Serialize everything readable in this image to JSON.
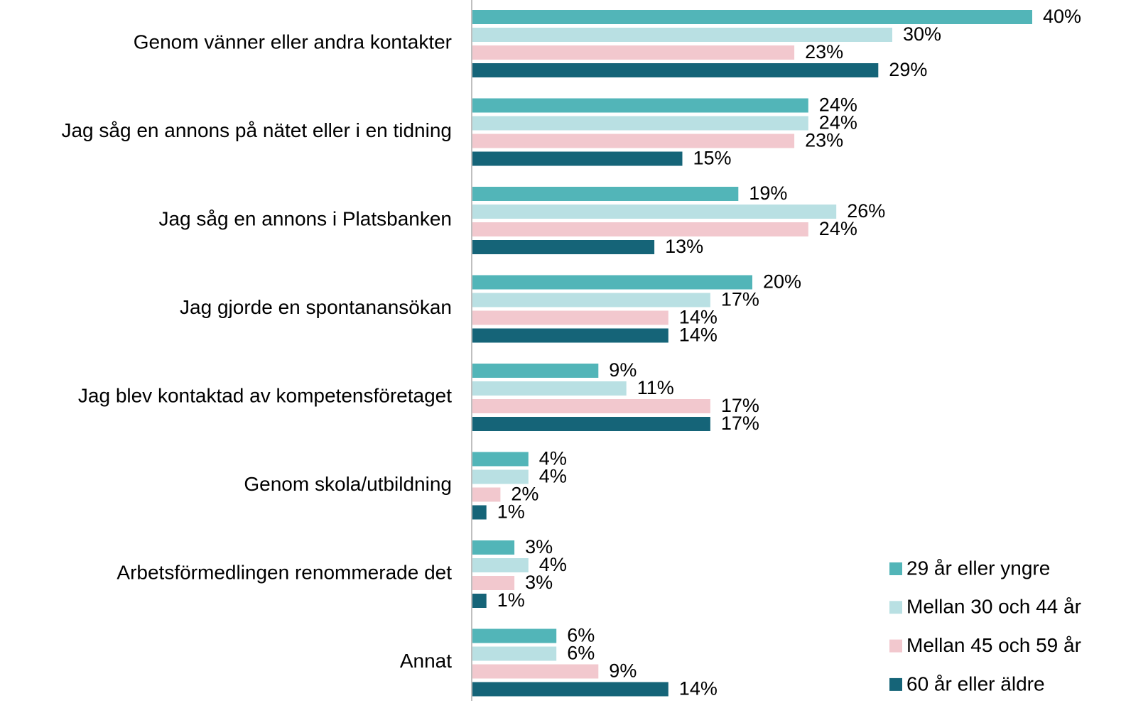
{
  "chart_data": {
    "type": "bar",
    "orientation": "horizontal",
    "categories": [
      "Genom vänner eller andra kontakter",
      "Jag såg en annons på nätet eller i en tidning",
      "Jag såg en annons i Platsbanken",
      "Jag gjorde en spontanansökan",
      "Jag blev kontaktad av kompetensföretaget",
      "Genom skola/utbildning",
      "Arbetsförmedlingen renommerade det",
      "Annat"
    ],
    "series": [
      {
        "name": "29 år eller yngre",
        "color": "#52b5b8",
        "values": [
          40,
          24,
          19,
          20,
          9,
          4,
          3,
          6
        ],
        "value_labels": [
          "40%",
          "24%",
          "19%",
          "20%",
          "9%",
          "4%",
          "3%",
          "6%"
        ]
      },
      {
        "name": "Mellan 30 och 44 år",
        "color": "#b9e0e3",
        "values": [
          30,
          24,
          26,
          17,
          11,
          4,
          4,
          6
        ],
        "value_labels": [
          "30%",
          "24%",
          "26%",
          "17%",
          "11%",
          "4%",
          "4%",
          "6%"
        ]
      },
      {
        "name": "Mellan 45 och 59 år",
        "color": "#f2c8ce",
        "values": [
          23,
          23,
          24,
          14,
          17,
          2,
          3,
          9
        ],
        "value_labels": [
          "23%",
          "23%",
          "24%",
          "14%",
          "17%",
          "2%",
          "3%",
          "9%"
        ]
      },
      {
        "name": "60 år eller äldre",
        "color": "#156478",
        "values": [
          29,
          15,
          13,
          14,
          17,
          1,
          1,
          14
        ],
        "value_labels": [
          "29%",
          "15%",
          "13%",
          "14%",
          "17%",
          "1%",
          "1%",
          "14%"
        ]
      }
    ],
    "legend": "lower right"
  }
}
